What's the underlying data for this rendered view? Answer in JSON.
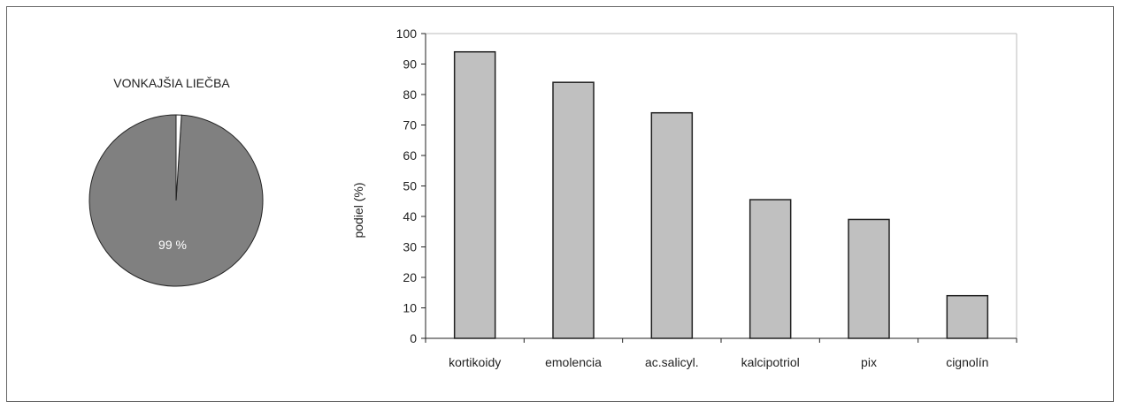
{
  "chart_data": [
    {
      "type": "pie",
      "title": "VONKAJŠIA LIEČBA",
      "slices": [
        {
          "label": "99 %",
          "value": 99,
          "color": "#808080"
        },
        {
          "label": "",
          "value": 1,
          "color": "#ffffff"
        }
      ]
    },
    {
      "type": "bar",
      "categories": [
        "kortikoidy",
        "emolencia",
        "ac.salicyl.",
        "kalcipotriol",
        "pix",
        "cignolín"
      ],
      "values": [
        94,
        84,
        74,
        45.5,
        39,
        14
      ],
      "ylabel": "podiel (%)",
      "ylim": [
        0,
        100
      ],
      "yticks": [
        0,
        10,
        20,
        30,
        40,
        50,
        60,
        70,
        80,
        90,
        100
      ],
      "bar_color": "#c0c0c0",
      "grid": false
    }
  ]
}
